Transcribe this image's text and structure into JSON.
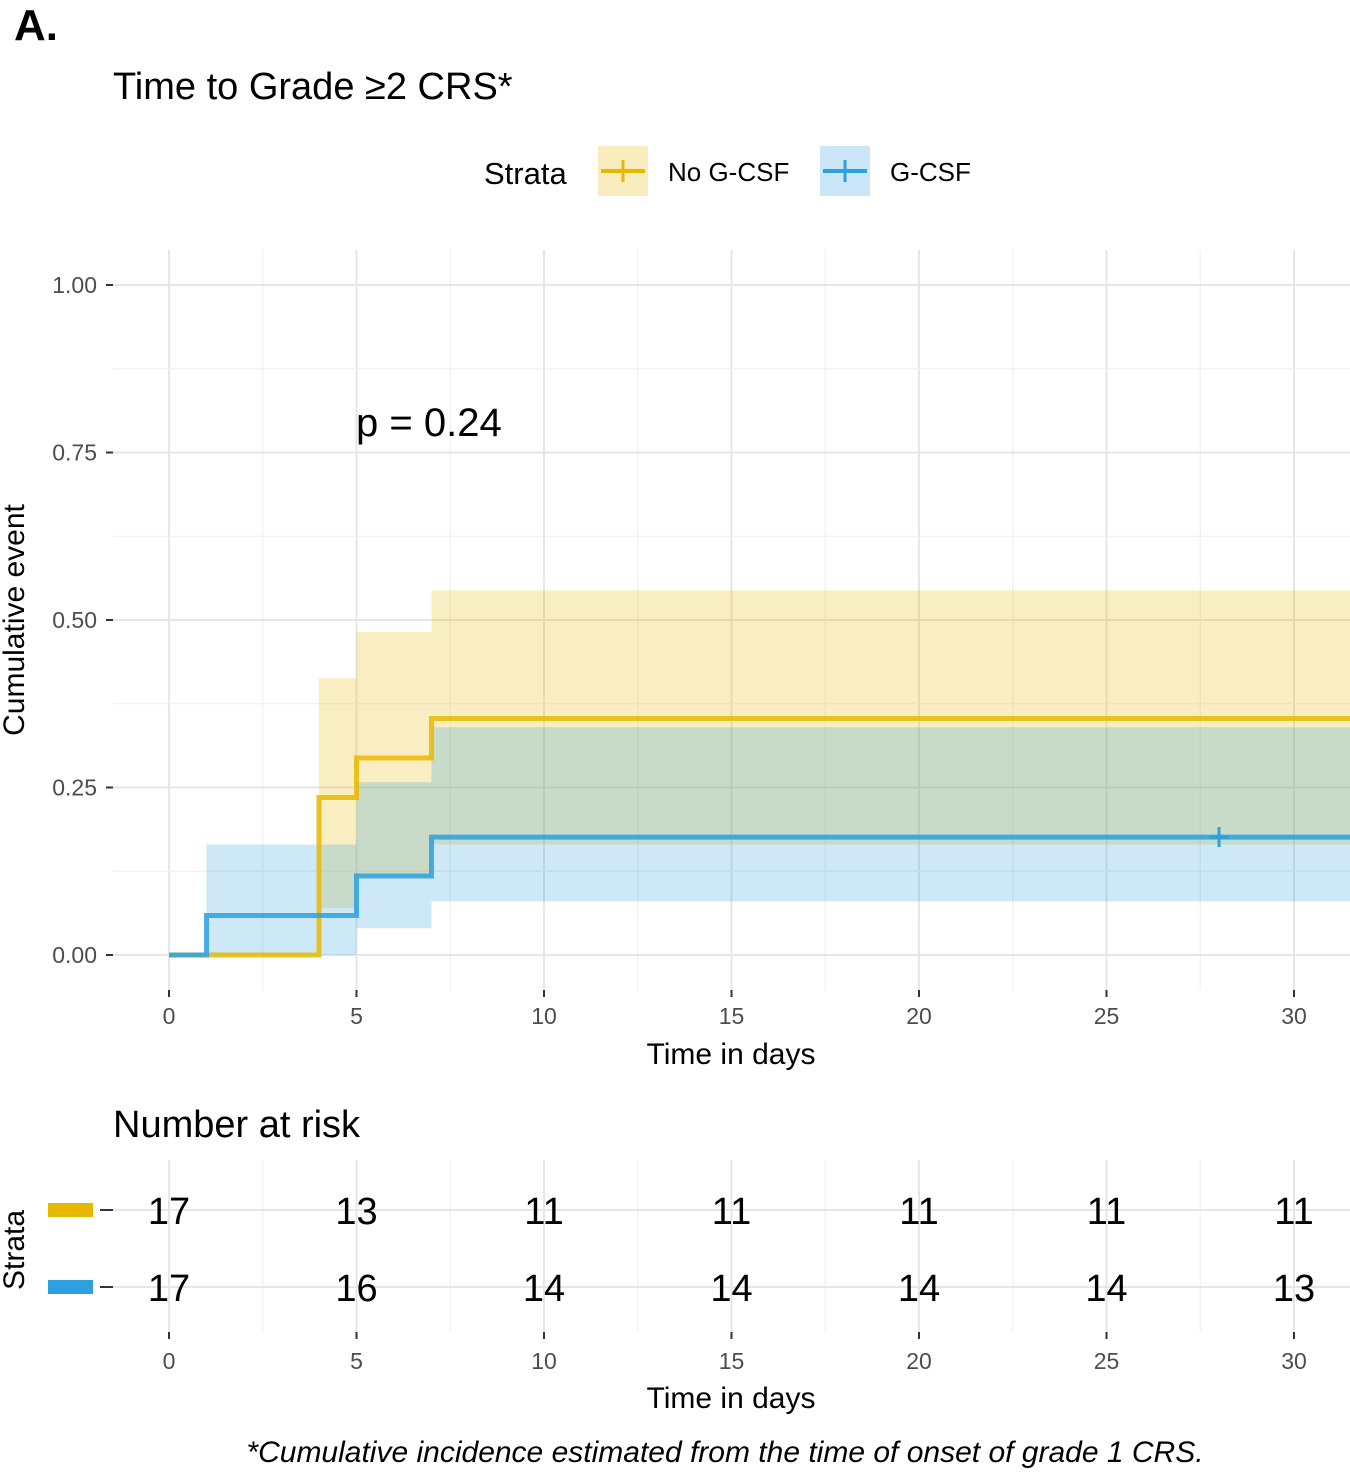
{
  "panel_label": "A.",
  "colors": {
    "no_gcsf": "#E7B800",
    "gcsf": "#2E9FDF"
  },
  "chart_data": {
    "type": "step",
    "title": "Time to Grade ≥2 CRS*",
    "legend": {
      "title": "Strata",
      "position": "top",
      "entries": [
        "No G-CSF",
        "G-CSF"
      ]
    },
    "xlabel": "Time in days",
    "ylabel": "Cumulative event",
    "xlim": [
      0,
      31.5
    ],
    "ylim": [
      0,
      1
    ],
    "xticks": [
      0,
      5,
      10,
      15,
      20,
      25,
      30
    ],
    "xtick_labels": [
      "0",
      "5",
      "10",
      "15",
      "20",
      "25",
      "30"
    ],
    "yticks": [
      0,
      0.25,
      0.5,
      0.75,
      1
    ],
    "ytick_labels": [
      "0.00",
      "0.25",
      "0.50",
      "0.75",
      "1.00"
    ],
    "annotation": "p = 0.24",
    "series": [
      {
        "name": "No G-CSF",
        "steps": [
          [
            0,
            0
          ],
          [
            4,
            0.235
          ],
          [
            5,
            0.294
          ],
          [
            7,
            0.353
          ],
          [
            31.5,
            0.353
          ]
        ],
        "ci_upper": [
          [
            0,
            0
          ],
          [
            4,
            0.413
          ],
          [
            5,
            0.482
          ],
          [
            7,
            0.544
          ],
          [
            31.5,
            0.544
          ]
        ],
        "ci_lower": [
          [
            0,
            0
          ],
          [
            4,
            0.07
          ],
          [
            5,
            0.118
          ],
          [
            7,
            0.165
          ],
          [
            31.5,
            0.165
          ]
        ],
        "censor_times": []
      },
      {
        "name": "G-CSF",
        "steps": [
          [
            0,
            0
          ],
          [
            1,
            0.059
          ],
          [
            5,
            0.118
          ],
          [
            7,
            0.176
          ],
          [
            31.5,
            0.176
          ]
        ],
        "ci_upper": [
          [
            0,
            0
          ],
          [
            1,
            0.165
          ],
          [
            5,
            0.258
          ],
          [
            7,
            0.34
          ],
          [
            31.5,
            0.34
          ]
        ],
        "ci_lower": [
          [
            0,
            0
          ],
          [
            1,
            0
          ],
          [
            5,
            0.04
          ],
          [
            7,
            0.08
          ],
          [
            31.5,
            0.08
          ]
        ],
        "censor_times": [
          28
        ]
      }
    ],
    "risk_table": {
      "title": "Number at risk",
      "ylabel": "Strata",
      "xlabel": "Time in days",
      "times": [
        0,
        5,
        10,
        15,
        20,
        25,
        30
      ],
      "time_labels": [
        "0",
        "5",
        "10",
        "15",
        "20",
        "25",
        "30"
      ],
      "rows": [
        {
          "name": "No G-CSF",
          "counts": [
            "17",
            "13",
            "11",
            "11",
            "11",
            "11",
            "11"
          ]
        },
        {
          "name": "G-CSF",
          "counts": [
            "17",
            "16",
            "14",
            "14",
            "14",
            "14",
            "13"
          ]
        }
      ]
    },
    "caption": "*Cumulative incidence estimated from the time of onset of grade 1 CRS."
  }
}
